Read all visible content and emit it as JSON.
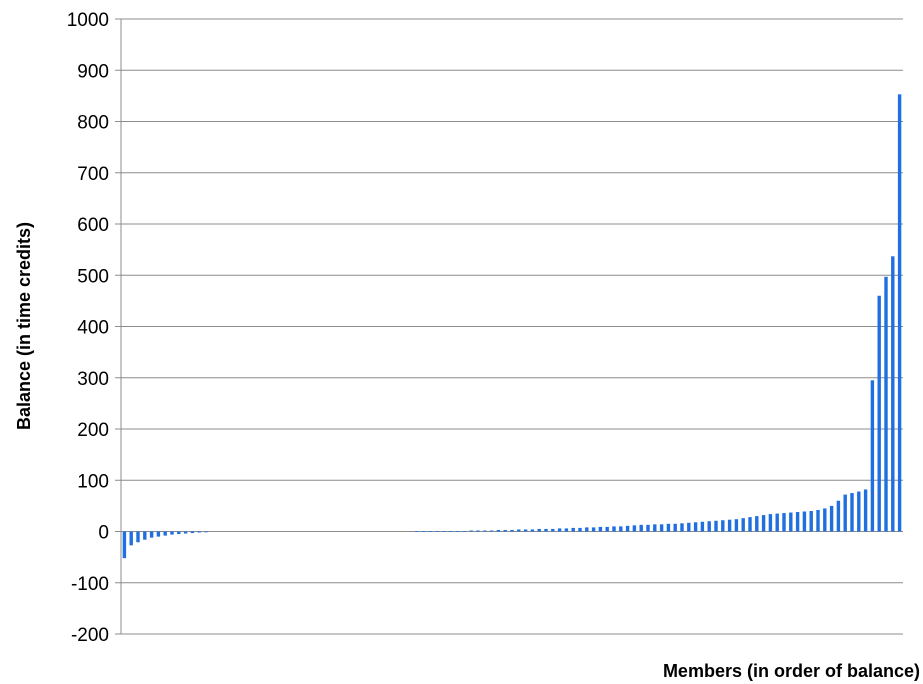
{
  "chart_data": {
    "type": "bar",
    "title": "",
    "xlabel": "Members (in order of balance)",
    "ylabel": "Balance (in time credits)",
    "ylim": [
      -200,
      1000
    ],
    "yticks": [
      1000,
      900,
      800,
      700,
      600,
      500,
      400,
      300,
      200,
      100,
      0,
      -100,
      -200
    ],
    "grid": true,
    "legend": "none",
    "bar_color": "#1f6fe0",
    "grid_color": "#8c8c8c",
    "values": [
      -52,
      -27,
      -21,
      -16,
      -12,
      -10,
      -8,
      -6,
      -5,
      -4,
      -3,
      -2,
      -1,
      0,
      0,
      0,
      0,
      0,
      0,
      0,
      0,
      0,
      0,
      0,
      0,
      0,
      0,
      0,
      0,
      0,
      0,
      0,
      0,
      0,
      0,
      0,
      0,
      0,
      0,
      0,
      0,
      0,
      0,
      1,
      1,
      1,
      1,
      1,
      1,
      1,
      1,
      2,
      2,
      2,
      2,
      3,
      3,
      3,
      4,
      4,
      4,
      5,
      5,
      5,
      6,
      6,
      7,
      7,
      8,
      8,
      9,
      9,
      10,
      10,
      11,
      12,
      13,
      13,
      14,
      14,
      15,
      15,
      16,
      17,
      18,
      19,
      20,
      21,
      22,
      23,
      24,
      26,
      28,
      30,
      32,
      34,
      35,
      36,
      37,
      38,
      39,
      40,
      42,
      45,
      50,
      60,
      72,
      75,
      78,
      82,
      295,
      460,
      497,
      537,
      853
    ]
  }
}
